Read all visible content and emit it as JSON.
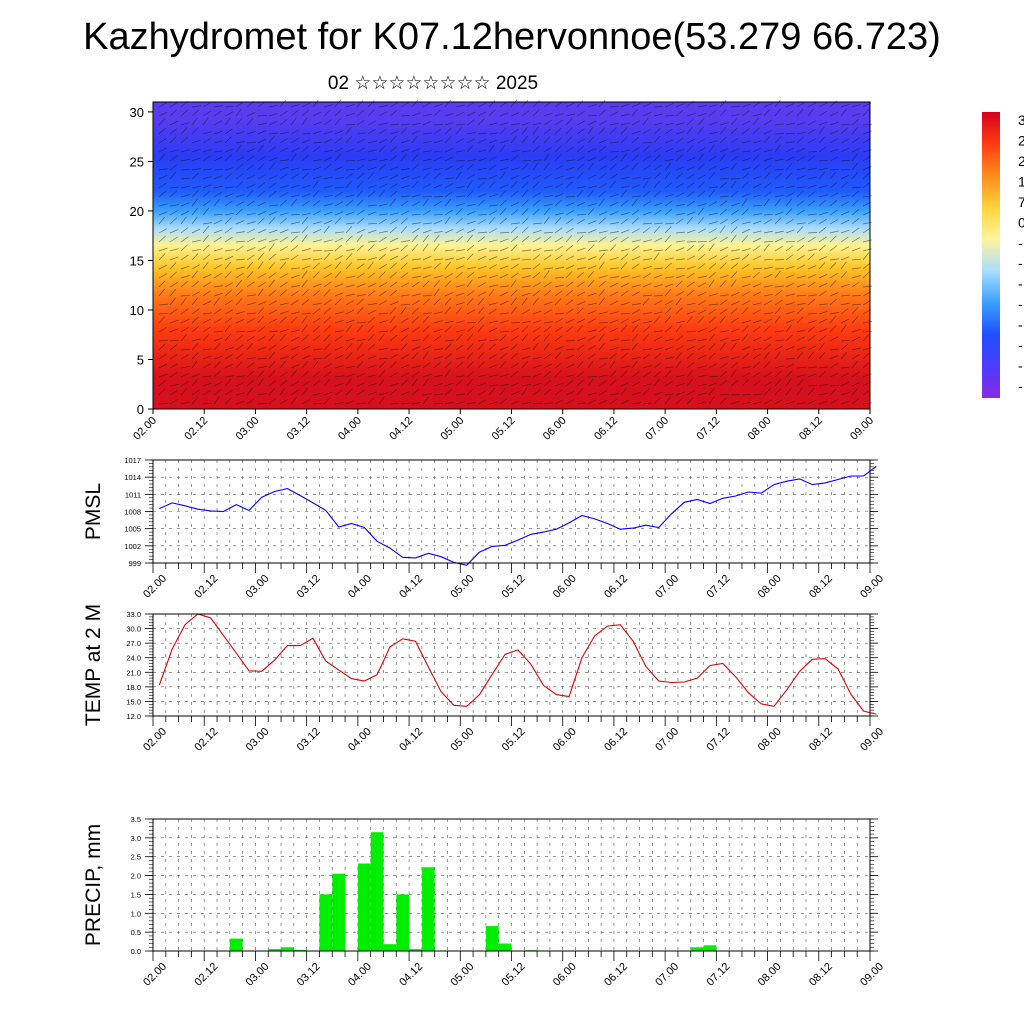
{
  "title": "Kazhydromet for K07.12hervonnoe(53.279 66.723)",
  "subtitle": "02 ☆☆☆☆☆☆☆☆ 2025",
  "time_ticks": [
    "02.00",
    "02.12",
    "03.00",
    "03.12",
    "04.00",
    "04.12",
    "05.00",
    "05.12",
    "06.00",
    "06.12",
    "07.00",
    "07.12",
    "08.00",
    "08.12",
    "09.00"
  ],
  "colorbar_labels": [
    "3",
    "2",
    "2",
    "1",
    "7",
    "0",
    "-",
    "-",
    "-",
    "-",
    "-",
    "-",
    "-",
    "-"
  ],
  "chart_data": [
    {
      "type": "heatmap",
      "name": "vertical cross-section",
      "y_ticks": [
        "0",
        "5",
        "10",
        "15",
        "20",
        "25",
        "30"
      ],
      "ylim": [
        0,
        31
      ],
      "colormap": [
        "#8a2be2",
        "#4b3cff",
        "#1f4fff",
        "#3aa0ff",
        "#a8dcff",
        "#fff59a",
        "#ffd23a",
        "#ff8c1a",
        "#ff3b10",
        "#d6001c"
      ],
      "bands": [
        {
          "from": 0,
          "to": 6,
          "color": "#d6101c"
        },
        {
          "from": 6,
          "to": 10,
          "color": "#ff3b10"
        },
        {
          "from": 10,
          "to": 13,
          "color": "#ff7a18"
        },
        {
          "from": 13,
          "to": 15.5,
          "color": "#ffc425"
        },
        {
          "from": 15.5,
          "to": 17.5,
          "color": "#fff390"
        },
        {
          "from": 17.5,
          "to": 19,
          "color": "#a8dcff"
        },
        {
          "from": 19,
          "to": 21,
          "color": "#3aa0ff"
        },
        {
          "from": 21,
          "to": 23,
          "color": "#1f5bff"
        },
        {
          "from": 23,
          "to": 28,
          "color": "#2a3cf5"
        },
        {
          "from": 28,
          "to": 31,
          "color": "#5a3cf0"
        }
      ]
    },
    {
      "type": "line",
      "ylabel": "PMSL",
      "color": "#0000ff",
      "y_ticks": [
        "999",
        "1002",
        "1005",
        "1008",
        "1011",
        "1014",
        "1017"
      ],
      "ylim": [
        999,
        1017
      ],
      "x_start": "02.00",
      "x_step_hours": 3,
      "values": [
        1008.5,
        1009.5,
        1009,
        1008.4,
        1008.1,
        1008,
        1009.2,
        1008.2,
        1010.5,
        1011.5,
        1012,
        1010.8,
        1009.5,
        1008.2,
        1005.3,
        1005.9,
        1005.2,
        1002.8,
        1001.6,
        1000,
        999.9,
        1000.7,
        1000.1,
        999.1,
        998.6,
        1000.9,
        1001.9,
        1002.1,
        1003,
        1004,
        1004.4,
        1004.9,
        1006,
        1007.3,
        1006.7,
        1005.9,
        1004.9,
        1005.1,
        1005.6,
        1005.2,
        1007.6,
        1009.6,
        1010.1,
        1009.4,
        1010.3,
        1010.7,
        1011.4,
        1011.2,
        1012.7,
        1013.3,
        1013.7,
        1012.7,
        1013,
        1013.6,
        1014.2,
        1014.2,
        1015.9
      ]
    },
    {
      "type": "line",
      "ylabel": "TEMP at 2 M",
      "color": "#e00000",
      "y_ticks": [
        "12.0",
        "15.0",
        "18.0",
        "21.0",
        "24.0",
        "27.0",
        "30.0",
        "33.0"
      ],
      "ylim": [
        12,
        33
      ],
      "x_start": "02.00",
      "x_step_hours": 3,
      "values": [
        18.4,
        25.8,
        30.8,
        33,
        32.2,
        28.6,
        25,
        21.3,
        21.2,
        23.5,
        26.5,
        26.5,
        28,
        23.3,
        21.5,
        19.7,
        19.2,
        20.5,
        26.2,
        27.9,
        27.4,
        22.1,
        17,
        14.2,
        14,
        16.4,
        20.6,
        24.7,
        25.6,
        22.7,
        18.3,
        16.4,
        16,
        24,
        28.5,
        30.5,
        30.8,
        27.4,
        22.2,
        19.2,
        18.9,
        19,
        19.8,
        22.4,
        22.8,
        20.1,
        16.8,
        14.5,
        14,
        17.4,
        21.2,
        23.7,
        23.8,
        21.7,
        16.5,
        13,
        12.4
      ]
    },
    {
      "type": "bar",
      "ylabel": "PRECIP, mm",
      "color": "#00ee00",
      "y_ticks": [
        "0.0",
        "0.5",
        "1.0",
        "1.5",
        "2.0",
        "2.5",
        "3.0",
        "3.5"
      ],
      "ylim": [
        0,
        3.5
      ],
      "x_start": "02.00",
      "x_step_hours": 3,
      "values": [
        0,
        0,
        0,
        0,
        0,
        0,
        0.33,
        0,
        0,
        0.05,
        0.1,
        0.03,
        0,
        1.5,
        2.05,
        0,
        2.32,
        3.15,
        0.18,
        1.5,
        0.05,
        2.22,
        0,
        0,
        0,
        0,
        0.66,
        0.2,
        0,
        0.02,
        0,
        0,
        0,
        0,
        0,
        0,
        0,
        0,
        0,
        0,
        0,
        0,
        0.1,
        0.15,
        0,
        0,
        0,
        0,
        0,
        0,
        0,
        0,
        0,
        0,
        0,
        0
      ]
    }
  ]
}
